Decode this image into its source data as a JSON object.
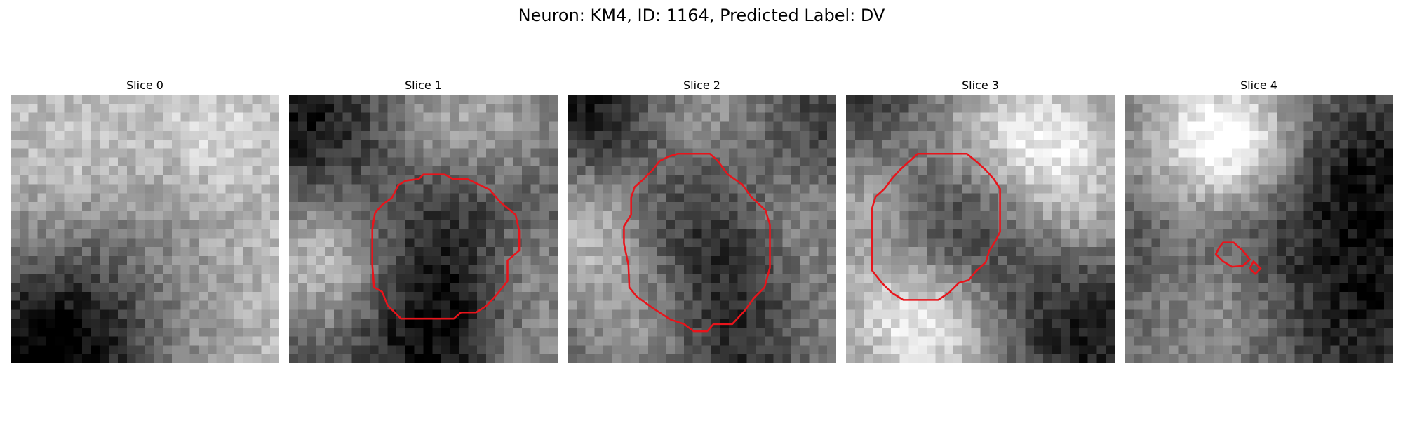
{
  "figure": {
    "title": "Neuron: KM4, ID: 1164, Predicted Label: DV"
  },
  "panels": [
    {
      "title": "Slice 0",
      "seed": 11,
      "base": 0.74,
      "contour": []
    },
    {
      "title": "Slice 1",
      "seed": 23,
      "base": 0.3,
      "contour": [
        [
          19.9,
          9.4
        ],
        [
          22.4,
          10.6
        ],
        [
          23.6,
          12.0
        ],
        [
          25.3,
          13.4
        ],
        [
          25.7,
          15.2
        ],
        [
          25.7,
          17.4
        ],
        [
          24.4,
          18.5
        ],
        [
          24.4,
          20.8
        ],
        [
          23.2,
          22.3
        ],
        [
          22.0,
          23.6
        ],
        [
          20.9,
          24.3
        ],
        [
          19.2,
          24.3
        ],
        [
          18.4,
          25.0
        ],
        [
          15.0,
          25.0
        ],
        [
          12.5,
          25.0
        ],
        [
          11.0,
          23.5
        ],
        [
          10.4,
          22.0
        ],
        [
          9.5,
          21.5
        ],
        [
          9.3,
          19.0
        ],
        [
          9.3,
          15.0
        ],
        [
          9.6,
          13.2
        ],
        [
          10.4,
          12.3
        ],
        [
          11.5,
          11.5
        ],
        [
          12.2,
          10.1
        ],
        [
          13.0,
          9.6
        ],
        [
          14.5,
          9.4
        ],
        [
          15.0,
          8.9
        ],
        [
          17.4,
          8.9
        ],
        [
          18.3,
          9.4
        ]
      ]
    },
    {
      "title": "Slice 2",
      "seed": 37,
      "base": 0.3,
      "contour": [
        [
          13.9,
          6.6
        ],
        [
          15.9,
          6.6
        ],
        [
          16.7,
          7.3
        ],
        [
          17.9,
          8.9
        ],
        [
          19.5,
          10.0
        ],
        [
          20.5,
          11.4
        ],
        [
          22.1,
          12.9
        ],
        [
          22.6,
          14.5
        ],
        [
          22.6,
          17.0
        ],
        [
          22.6,
          19.3
        ],
        [
          22.0,
          21.5
        ],
        [
          20.8,
          22.7
        ],
        [
          19.8,
          24.1
        ],
        [
          18.4,
          25.6
        ],
        [
          17.3,
          25.6
        ],
        [
          16.3,
          25.6
        ],
        [
          15.6,
          26.4
        ],
        [
          14.1,
          26.4
        ],
        [
          13.0,
          25.6
        ],
        [
          11.5,
          25.1
        ],
        [
          9.5,
          23.8
        ],
        [
          7.7,
          22.5
        ],
        [
          6.9,
          21.5
        ],
        [
          6.8,
          19.0
        ],
        [
          6.3,
          16.6
        ],
        [
          6.3,
          14.7
        ],
        [
          7.1,
          13.4
        ],
        [
          7.1,
          11.5
        ],
        [
          7.5,
          10.3
        ],
        [
          8.4,
          9.5
        ],
        [
          9.5,
          8.4
        ],
        [
          10.3,
          7.4
        ],
        [
          11.3,
          6.9
        ],
        [
          12.3,
          6.6
        ]
      ]
    },
    {
      "title": "Slice 3",
      "seed": 53,
      "base": 0.34,
      "contour": [
        [
          9.0,
          6.6
        ],
        [
          13.5,
          6.6
        ],
        [
          14.6,
          7.5
        ],
        [
          15.6,
          8.4
        ],
        [
          16.5,
          9.4
        ],
        [
          17.2,
          10.5
        ],
        [
          17.2,
          12.9
        ],
        [
          17.2,
          15.3
        ],
        [
          16.7,
          16.3
        ],
        [
          16.0,
          17.4
        ],
        [
          15.6,
          18.7
        ],
        [
          14.5,
          19.7
        ],
        [
          13.7,
          20.7
        ],
        [
          12.6,
          21.0
        ],
        [
          11.5,
          22.1
        ],
        [
          10.3,
          22.9
        ],
        [
          9.0,
          22.9
        ],
        [
          7.7,
          22.9
        ],
        [
          6.4,
          22.9
        ],
        [
          5.1,
          22.1
        ],
        [
          4.0,
          21.0
        ],
        [
          2.9,
          19.6
        ],
        [
          2.9,
          18.0
        ],
        [
          2.9,
          15.6
        ],
        [
          2.9,
          12.7
        ],
        [
          3.3,
          11.4
        ],
        [
          4.3,
          10.5
        ],
        [
          5.1,
          9.4
        ],
        [
          6.0,
          8.4
        ],
        [
          7.0,
          7.5
        ],
        [
          8.0,
          6.6
        ]
      ]
    },
    {
      "title": "Slice 4",
      "seed": 71,
      "base": 0.42,
      "contour": [
        [
          11.0,
          16.5
        ],
        [
          12.2,
          16.5
        ],
        [
          13.2,
          17.4
        ],
        [
          14.0,
          18.4
        ],
        [
          13.2,
          19.1
        ],
        [
          12.0,
          19.2
        ],
        [
          11.0,
          18.6
        ],
        [
          10.2,
          17.8
        ],
        [
          10.6,
          17.0
        ]
      ],
      "extra": [
        [
          14.4,
          18.6
        ],
        [
          15.2,
          19.4
        ],
        [
          14.6,
          20.0
        ],
        [
          14.0,
          19.4
        ]
      ]
    }
  ]
}
